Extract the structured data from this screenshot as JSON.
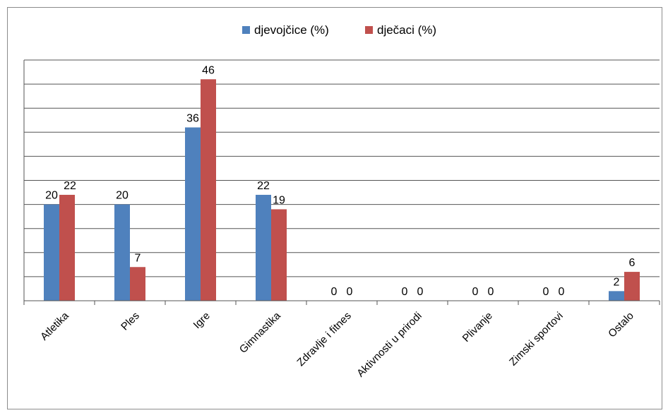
{
  "chart_data": {
    "type": "bar",
    "categories": [
      "Atletika",
      "Ples",
      "Igre",
      "Gimnastika",
      "Zdravlje i fitnes",
      "Aktivnosti u prirodi",
      "Plivanje",
      "Zimski sportovi",
      "Ostalo"
    ],
    "series": [
      {
        "name": "djevojčice (%)",
        "values": [
          20,
          20,
          36,
          22,
          0,
          0,
          0,
          0,
          2
        ],
        "color": "#4f81bd"
      },
      {
        "name": "dječaci (%)",
        "values": [
          22,
          7,
          46,
          19,
          0,
          0,
          0,
          0,
          6
        ],
        "color": "#c0504d"
      }
    ],
    "ylim": [
      0,
      50
    ],
    "legend": "top",
    "grid": true
  }
}
